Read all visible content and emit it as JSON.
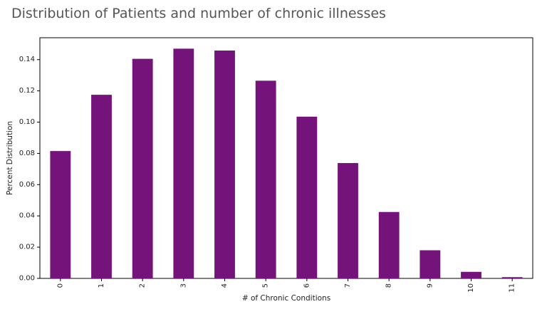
{
  "page": {
    "title": "Distribution of Patients and number of chronic illnesses"
  },
  "colors": {
    "bar": "#74137a",
    "axis": "#000000",
    "text": "#222222",
    "title": "#555555"
  },
  "chart_data": {
    "type": "bar",
    "title": "",
    "xlabel": "# of Chronic Conditions",
    "ylabel": "Percent Distribution",
    "categories": [
      "0",
      "1",
      "2",
      "3",
      "4",
      "5",
      "6",
      "7",
      "8",
      "9",
      "10",
      "11"
    ],
    "values": [
      0.0815,
      0.1175,
      0.1405,
      0.147,
      0.1458,
      0.1265,
      0.1035,
      0.0738,
      0.0425,
      0.018,
      0.0042,
      0.0008
    ],
    "ylim": [
      0,
      0.154
    ],
    "yticks": [
      "0.00",
      "0.02",
      "0.04",
      "0.06",
      "0.08",
      "0.10",
      "0.12",
      "0.14"
    ],
    "ytick_values": [
      0,
      0.02,
      0.04,
      0.06,
      0.08,
      0.1,
      0.12,
      0.14
    ],
    "grid": false,
    "legend": "none"
  }
}
